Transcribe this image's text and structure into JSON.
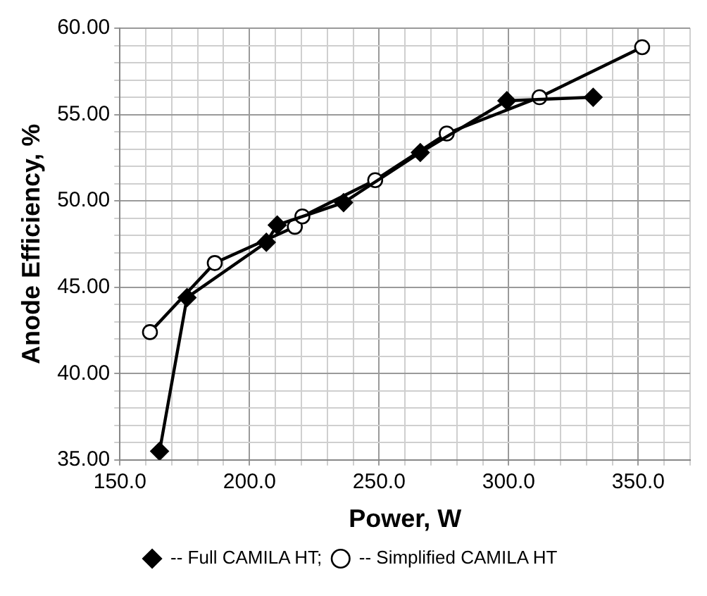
{
  "chart_data": {
    "type": "line",
    "xlabel": "Power, W",
    "ylabel": "Anode Efficiency, %",
    "xlim": [
      150,
      370
    ],
    "xticks": [
      {
        "value": 150,
        "label": "150.0"
      },
      {
        "value": 160,
        "label": null
      },
      {
        "value": 170,
        "label": null
      },
      {
        "value": 180,
        "label": null
      },
      {
        "value": 190,
        "label": null
      },
      {
        "value": 200,
        "label": "200.0"
      },
      {
        "value": 210,
        "label": null
      },
      {
        "value": 220,
        "label": null
      },
      {
        "value": 230,
        "label": null
      },
      {
        "value": 240,
        "label": null
      },
      {
        "value": 250,
        "label": "250.0"
      },
      {
        "value": 260,
        "label": null
      },
      {
        "value": 270,
        "label": null
      },
      {
        "value": 280,
        "label": null
      },
      {
        "value": 290,
        "label": null
      },
      {
        "value": 300,
        "label": "300.0"
      },
      {
        "value": 310,
        "label": null
      },
      {
        "value": 320,
        "label": null
      },
      {
        "value": 330,
        "label": null
      },
      {
        "value": 340,
        "label": null
      },
      {
        "value": 350,
        "label": "350.0"
      },
      {
        "value": 360,
        "label": null
      },
      {
        "value": 370,
        "label": null
      }
    ],
    "ylim": [
      35,
      60
    ],
    "yticks": [
      {
        "value": 35,
        "label": "35.00"
      },
      {
        "value": 36,
        "label": null
      },
      {
        "value": 37,
        "label": null
      },
      {
        "value": 38,
        "label": null
      },
      {
        "value": 39,
        "label": null
      },
      {
        "value": 40,
        "label": "40.00"
      },
      {
        "value": 41,
        "label": null
      },
      {
        "value": 42,
        "label": null
      },
      {
        "value": 43,
        "label": null
      },
      {
        "value": 44,
        "label": null
      },
      {
        "value": 45,
        "label": "45.00"
      },
      {
        "value": 46,
        "label": null
      },
      {
        "value": 47,
        "label": null
      },
      {
        "value": 48,
        "label": null
      },
      {
        "value": 49,
        "label": null
      },
      {
        "value": 50,
        "label": "50.00"
      },
      {
        "value": 51,
        "label": null
      },
      {
        "value": 52,
        "label": null
      },
      {
        "value": 53,
        "label": null
      },
      {
        "value": 54,
        "label": null
      },
      {
        "value": 55,
        "label": "55.00"
      },
      {
        "value": 56,
        "label": null
      },
      {
        "value": 57,
        "label": null
      },
      {
        "value": 58,
        "label": null
      },
      {
        "value": 59,
        "label": null
      },
      {
        "value": 60,
        "label": "60.00"
      }
    ],
    "grid": true,
    "legend": "bottom",
    "line_style": "solid",
    "series": [
      {
        "name": "-- Full CAMILA HT;",
        "color": "#000000",
        "marker": "diamond",
        "x": [
          165.3,
          175.9,
          206.5,
          210.7,
          236.3,
          265.9,
          299.3,
          332.6
        ],
        "values": [
          35.5,
          44.4,
          47.6,
          48.6,
          49.9,
          52.8,
          55.8,
          56.0
        ]
      },
      {
        "name": "-- Simplified CAMILA HT",
        "color": "#000000",
        "marker": "circle",
        "x": [
          161.6,
          186.6,
          217.5,
          220.4,
          248.5,
          276.1,
          311.9,
          351.5
        ],
        "values": [
          42.4,
          46.4,
          48.5,
          49.1,
          51.2,
          53.9,
          56.0,
          58.9
        ]
      }
    ]
  }
}
